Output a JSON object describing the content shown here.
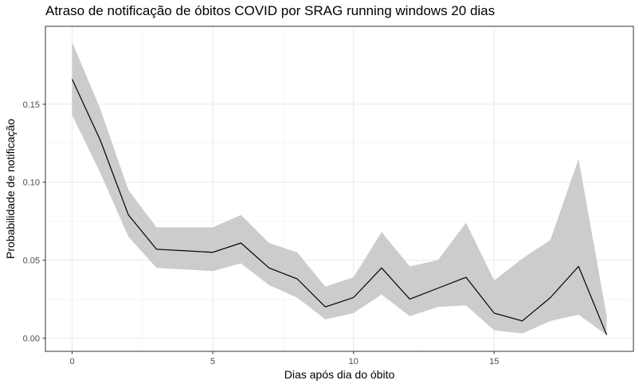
{
  "chart_data": {
    "type": "line",
    "title": "Atraso de notificação de óbitos COVID por SRAG running windows 20 dias",
    "xlabel": "Dias após dia do óbito",
    "ylabel": "Probabilidade de notificação",
    "xlim": [
      -0.95,
      19.95
    ],
    "ylim": [
      -0.0085,
      0.2
    ],
    "x_ticks": [
      0,
      5,
      10,
      15
    ],
    "x_tick_labels": [
      "0",
      "5",
      "10",
      "15"
    ],
    "y_ticks": [
      0,
      0.05,
      0.1,
      0.15
    ],
    "y_tick_labels": [
      "0.00",
      "0.05",
      "0.10",
      "0.15"
    ],
    "grid": true,
    "legend": "none",
    "x": [
      0,
      1,
      2,
      3,
      4,
      5,
      6,
      7,
      8,
      9,
      10,
      11,
      12,
      13,
      14,
      15,
      16,
      17,
      18,
      19
    ],
    "series": [
      {
        "values": [
          0.166,
          0.127,
          0.079,
          0.057,
          0.056,
          0.055,
          0.061,
          0.045,
          0.038,
          0.02,
          0.026,
          0.045,
          0.025,
          0.032,
          0.039,
          0.016,
          0.011,
          0.026,
          0.046,
          0.002
        ],
        "lower": [
          0.143,
          0.106,
          0.065,
          0.045,
          0.044,
          0.043,
          0.048,
          0.034,
          0.026,
          0.012,
          0.016,
          0.028,
          0.014,
          0.02,
          0.021,
          0.005,
          0.003,
          0.011,
          0.015,
          0.002
        ],
        "upper": [
          0.19,
          0.147,
          0.095,
          0.071,
          0.071,
          0.071,
          0.079,
          0.061,
          0.055,
          0.033,
          0.039,
          0.068,
          0.046,
          0.05,
          0.074,
          0.037,
          0.051,
          0.063,
          0.115,
          0.014
        ],
        "color": "#000000",
        "ribbon_color": "#cccccc"
      }
    ]
  }
}
